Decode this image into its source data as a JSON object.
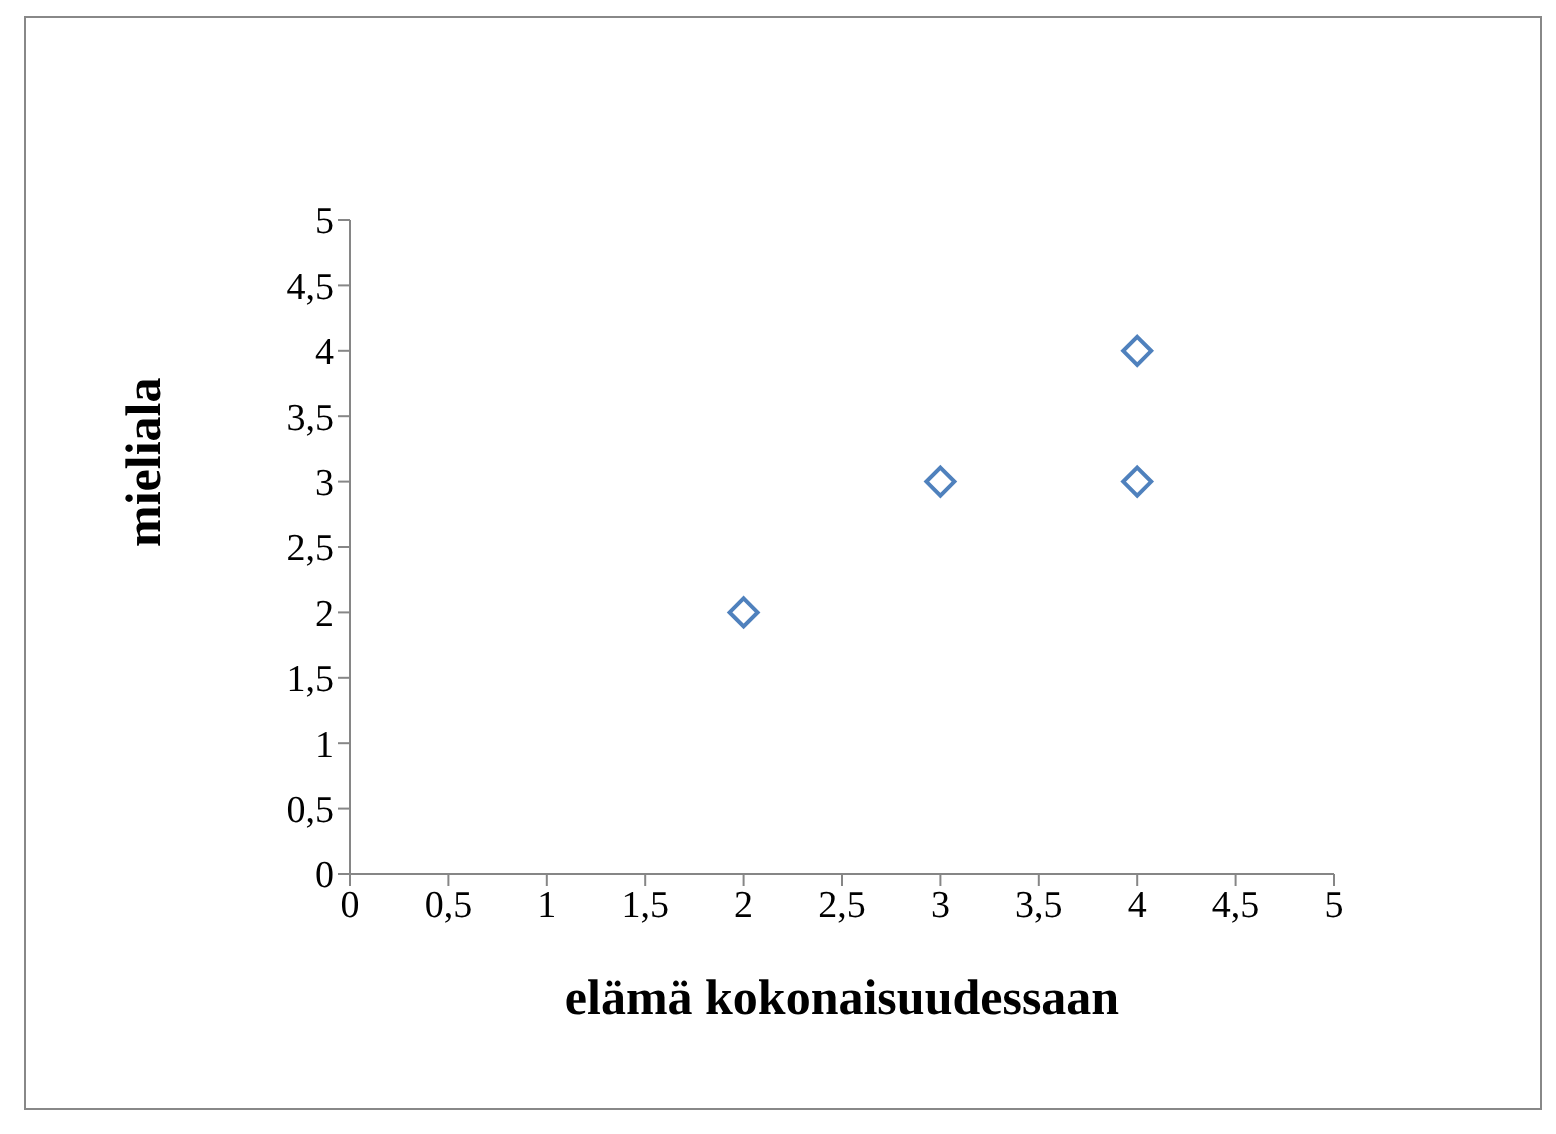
{
  "chart_data": {
    "type": "scatter",
    "xlabel": "elämä kokonaisuudessaan",
    "ylabel": "mieliala",
    "x": [
      2,
      3,
      4,
      4
    ],
    "series": [
      {
        "color": "#4f81bd",
        "values": [
          2,
          3,
          3,
          4
        ]
      }
    ],
    "xlim": [
      0,
      5
    ],
    "ylim": [
      0,
      5
    ],
    "xticks": [
      0,
      {
        "value": 0.5,
        "label": "0,5"
      },
      1,
      {
        "value": 1.5,
        "label": "1,5"
      },
      2,
      {
        "value": 2.5,
        "label": "2,5"
      },
      3,
      {
        "value": 3.5,
        "label": "3,5"
      },
      4,
      {
        "value": 4.5,
        "label": "4,5"
      },
      5
    ],
    "yticks": [
      0,
      {
        "value": 0.5,
        "label": "0,5"
      },
      1,
      {
        "value": 1.5,
        "label": "1,5"
      },
      2,
      {
        "value": 2.5,
        "label": "2,5"
      },
      3,
      {
        "value": 3.5,
        "label": "3,5"
      },
      4,
      {
        "value": 4.5,
        "label": "4,5"
      },
      5
    ],
    "marker": "diamond",
    "grid": false,
    "legend": false
  }
}
